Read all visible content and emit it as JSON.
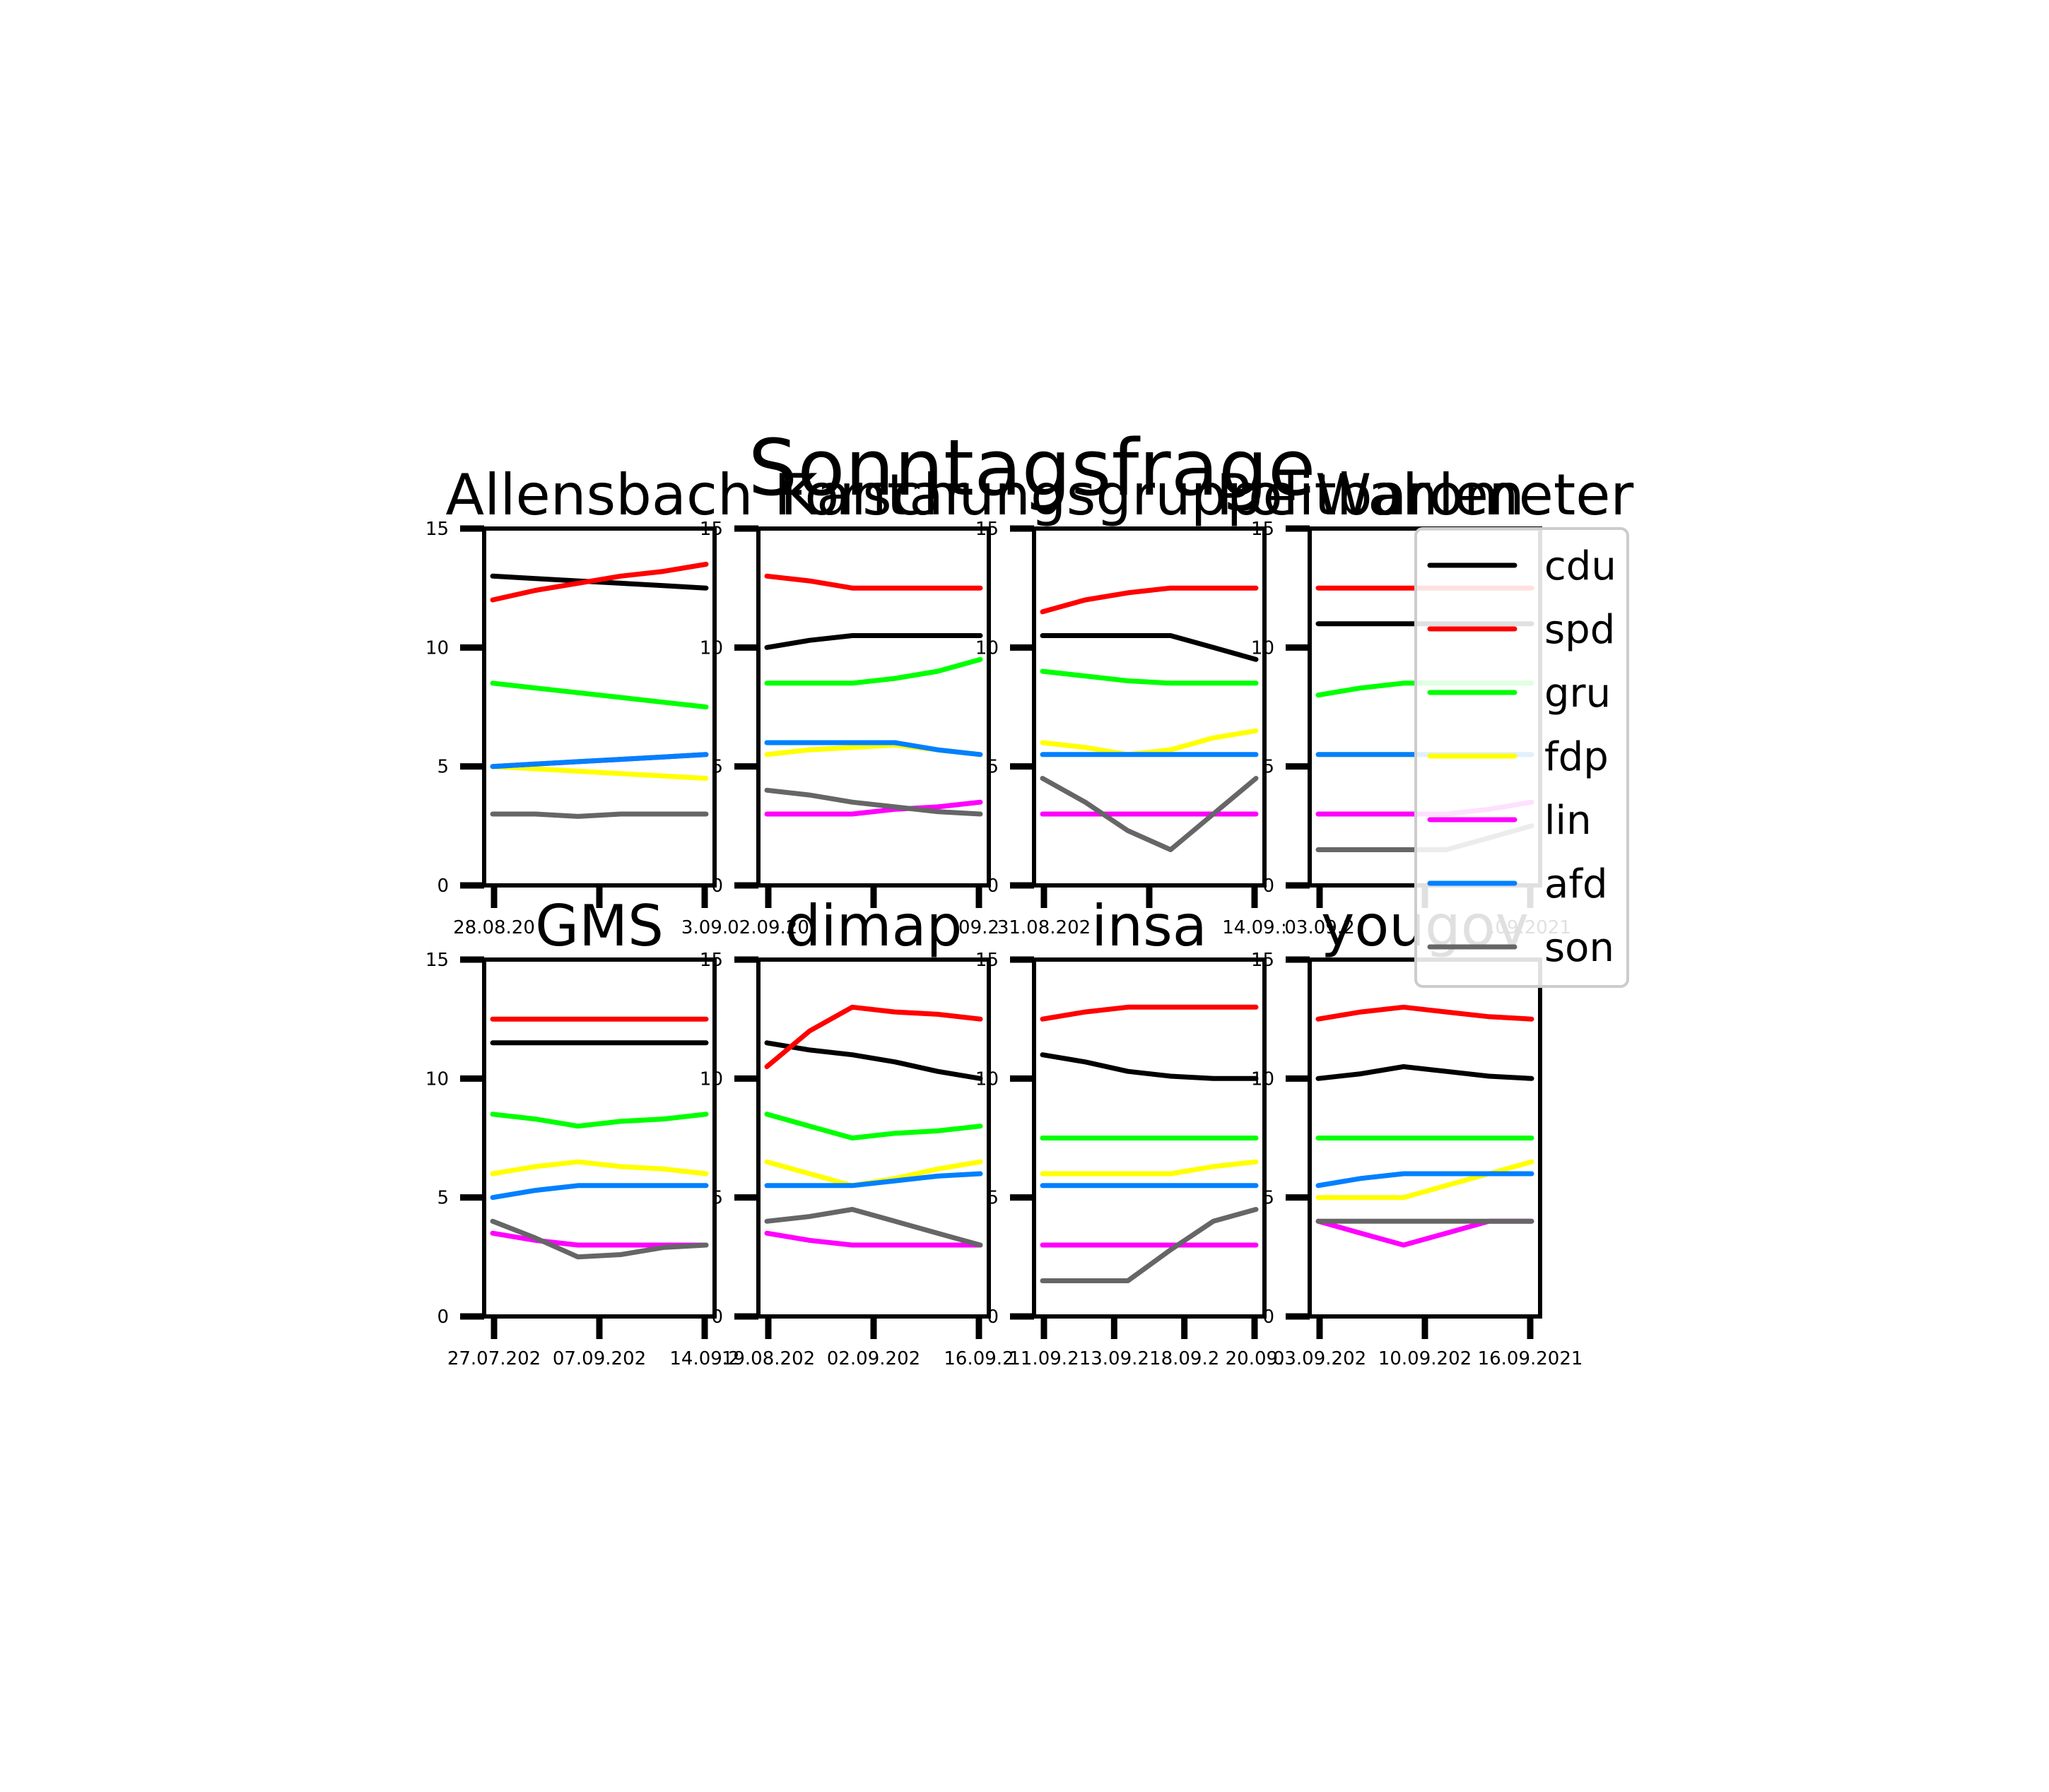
{
  "chart_data": {
    "type": "line",
    "title": "Sonntagsfrage",
    "ylim": [
      0,
      15
    ],
    "yticks": [
      0,
      5,
      10,
      15
    ],
    "legend": {
      "placement": "right",
      "entries": [
        "cdu",
        "spd",
        "gru",
        "fdp",
        "lin",
        "afd",
        "son"
      ]
    },
    "colors": {
      "cdu": "#000000",
      "spd": "#ff0000",
      "gru": "#00ff00",
      "fdp": "#ffff00",
      "lin": "#ff00ff",
      "afd": "#0080ff",
      "son": "#666666"
    },
    "grid": false,
    "panels": [
      {
        "title": "Allensbach",
        "xticks": [
          "28.08.20",
          "",
          "3.09."
        ],
        "series": [
          {
            "name": "cdu",
            "values": [
              13,
              12.9,
              12.8,
              12.7,
              12.6,
              12.5
            ]
          },
          {
            "name": "spd",
            "values": [
              12,
              12.4,
              12.7,
              13,
              13.2,
              13.5
            ]
          },
          {
            "name": "gru",
            "values": [
              8.5,
              8.3,
              8.1,
              7.9,
              7.7,
              7.5
            ]
          },
          {
            "name": "fdp",
            "values": [
              5,
              4.9,
              4.8,
              4.7,
              4.6,
              4.5
            ]
          },
          {
            "name": "lin",
            "values": [
              5,
              5.1,
              5.2,
              5.3,
              5.4,
              5.5
            ]
          },
          {
            "name": "afd",
            "values": [
              5,
              5.1,
              5.2,
              5.3,
              5.4,
              5.5
            ]
          },
          {
            "name": "son",
            "values": [
              3,
              3,
              2.9,
              3,
              3,
              3
            ]
          }
        ]
      },
      {
        "title": "Kantar",
        "xticks": [
          "02.09.20",
          "",
          "09.2"
        ],
        "series": [
          {
            "name": "cdu",
            "values": [
              10,
              10.3,
              10.5,
              10.5,
              10.5,
              10.5
            ]
          },
          {
            "name": "spd",
            "values": [
              13,
              12.8,
              12.5,
              12.5,
              12.5,
              12.5
            ]
          },
          {
            "name": "gru",
            "values": [
              8.5,
              8.5,
              8.5,
              8.7,
              9,
              9.5
            ]
          },
          {
            "name": "fdp",
            "values": [
              5.5,
              5.7,
              5.8,
              5.9,
              5.7,
              5.5
            ]
          },
          {
            "name": "lin",
            "values": [
              3,
              3,
              3,
              3.2,
              3.3,
              3.5
            ]
          },
          {
            "name": "afd",
            "values": [
              6,
              6,
              6,
              6,
              5.7,
              5.5
            ]
          },
          {
            "name": "son",
            "values": [
              4,
              3.8,
              3.5,
              3.3,
              3.1,
              3
            ]
          }
        ]
      },
      {
        "title": "Forschungsgruppe Wahlen",
        "xticks": [
          "31.08.202",
          "",
          "14.09.:"
        ],
        "series": [
          {
            "name": "cdu",
            "values": [
              10.5,
              10.5,
              10.5,
              10.5,
              10,
              9.5
            ]
          },
          {
            "name": "spd",
            "values": [
              11.5,
              12,
              12.3,
              12.5,
              12.5,
              12.5
            ]
          },
          {
            "name": "gru",
            "values": [
              9,
              8.8,
              8.6,
              8.5,
              8.5,
              8.5
            ]
          },
          {
            "name": "fdp",
            "values": [
              6,
              5.8,
              5.5,
              5.7,
              6.2,
              6.5
            ]
          },
          {
            "name": "lin",
            "values": [
              3,
              3,
              3,
              3,
              3,
              3
            ]
          },
          {
            "name": "afd",
            "values": [
              5.5,
              5.5,
              5.5,
              5.5,
              5.5,
              5.5
            ]
          },
          {
            "name": "son",
            "values": [
              4.5,
              3.5,
              2.3,
              1.5,
              3,
              4.5
            ]
          }
        ]
      },
      {
        "title": "Politbarometer",
        "xticks": [
          "03.09.2",
          "",
          ".09.2021"
        ],
        "series": [
          {
            "name": "cdu",
            "values": [
              11,
              11,
              11,
              11,
              11,
              11
            ]
          },
          {
            "name": "spd",
            "values": [
              12.5,
              12.5,
              12.5,
              12.5,
              12.5,
              12.5
            ]
          },
          {
            "name": "gru",
            "values": [
              8,
              8.3,
              8.5,
              8.5,
              8.5,
              8.5
            ]
          },
          {
            "name": "fdp",
            "values": [
              5.5,
              5.5,
              5.5,
              5.5,
              5.5,
              5.5
            ]
          },
          {
            "name": "lin",
            "values": [
              3,
              3,
              3,
              3,
              3.2,
              3.5
            ]
          },
          {
            "name": "afd",
            "values": [
              5.5,
              5.5,
              5.5,
              5.5,
              5.5,
              5.5
            ]
          },
          {
            "name": "son",
            "values": [
              1.5,
              1.5,
              1.5,
              1.5,
              2,
              2.5
            ]
          }
        ]
      },
      {
        "title": "GMS",
        "xticks": [
          "27.07.202",
          "07.09.202",
          "14.09.2"
        ],
        "series": [
          {
            "name": "cdu",
            "values": [
              11.5,
              11.5,
              11.5,
              11.5,
              11.5,
              11.5
            ]
          },
          {
            "name": "spd",
            "values": [
              12.5,
              12.5,
              12.5,
              12.5,
              12.5,
              12.5
            ]
          },
          {
            "name": "gru",
            "values": [
              8.5,
              8.3,
              8,
              8.2,
              8.3,
              8.5
            ]
          },
          {
            "name": "fdp",
            "values": [
              6,
              6.3,
              6.5,
              6.3,
              6.2,
              6
            ]
          },
          {
            "name": "lin",
            "values": [
              3.5,
              3.2,
              3,
              3,
              3,
              3
            ]
          },
          {
            "name": "afd",
            "values": [
              5,
              5.3,
              5.5,
              5.5,
              5.5,
              5.5
            ]
          },
          {
            "name": "son",
            "values": [
              4,
              3.3,
              2.5,
              2.6,
              2.9,
              3
            ]
          }
        ]
      },
      {
        "title": "dimap",
        "xticks": [
          "19.08.202",
          "02.09.202",
          "16.09.2"
        ],
        "series": [
          {
            "name": "cdu",
            "values": [
              11.5,
              11.2,
              11,
              10.7,
              10.3,
              10
            ]
          },
          {
            "name": "spd",
            "values": [
              10.5,
              12,
              13,
              12.8,
              12.7,
              12.5
            ]
          },
          {
            "name": "gru",
            "values": [
              8.5,
              8,
              7.5,
              7.7,
              7.8,
              8
            ]
          },
          {
            "name": "fdp",
            "values": [
              6.5,
              6,
              5.5,
              5.8,
              6.2,
              6.5
            ]
          },
          {
            "name": "lin",
            "values": [
              3.5,
              3.2,
              3,
              3,
              3,
              3
            ]
          },
          {
            "name": "afd",
            "values": [
              5.5,
              5.5,
              5.5,
              5.7,
              5.9,
              6
            ]
          },
          {
            "name": "son",
            "values": [
              4,
              4.2,
              4.5,
              4,
              3.5,
              3
            ]
          }
        ]
      },
      {
        "title": "insa",
        "xticks": [
          "11.09.2",
          "13.09.2",
          "18.09.2",
          "20.09."
        ],
        "series": [
          {
            "name": "cdu",
            "values": [
              11,
              10.7,
              10.3,
              10.1,
              10,
              10
            ]
          },
          {
            "name": "spd",
            "values": [
              12.5,
              12.8,
              13,
              13,
              13,
              13
            ]
          },
          {
            "name": "gru",
            "values": [
              7.5,
              7.5,
              7.5,
              7.5,
              7.5,
              7.5
            ]
          },
          {
            "name": "fdp",
            "values": [
              6,
              6,
              6,
              6,
              6.3,
              6.5
            ]
          },
          {
            "name": "lin",
            "values": [
              3,
              3,
              3,
              3,
              3,
              3
            ]
          },
          {
            "name": "afd",
            "values": [
              5.5,
              5.5,
              5.5,
              5.5,
              5.5,
              5.5
            ]
          },
          {
            "name": "son",
            "values": [
              1.5,
              1.5,
              1.5,
              2.8,
              4,
              4.5
            ]
          }
        ]
      },
      {
        "title": "yougov",
        "xticks": [
          "03.09.202",
          "10.09.202",
          "16.09.2021"
        ],
        "series": [
          {
            "name": "cdu",
            "values": [
              10,
              10.2,
              10.5,
              10.3,
              10.1,
              10
            ]
          },
          {
            "name": "spd",
            "values": [
              12.5,
              12.8,
              13,
              12.8,
              12.6,
              12.5
            ]
          },
          {
            "name": "gru",
            "values": [
              7.5,
              7.5,
              7.5,
              7.5,
              7.5,
              7.5
            ]
          },
          {
            "name": "fdp",
            "values": [
              5,
              5,
              5,
              5.5,
              6,
              6.5
            ]
          },
          {
            "name": "lin",
            "values": [
              4,
              3.5,
              3,
              3.5,
              4,
              4
            ]
          },
          {
            "name": "afd",
            "values": [
              5.5,
              5.8,
              6,
              6,
              6,
              6
            ]
          },
          {
            "name": "son",
            "values": [
              4,
              4,
              4,
              4,
              4,
              4
            ]
          }
        ]
      }
    ]
  }
}
